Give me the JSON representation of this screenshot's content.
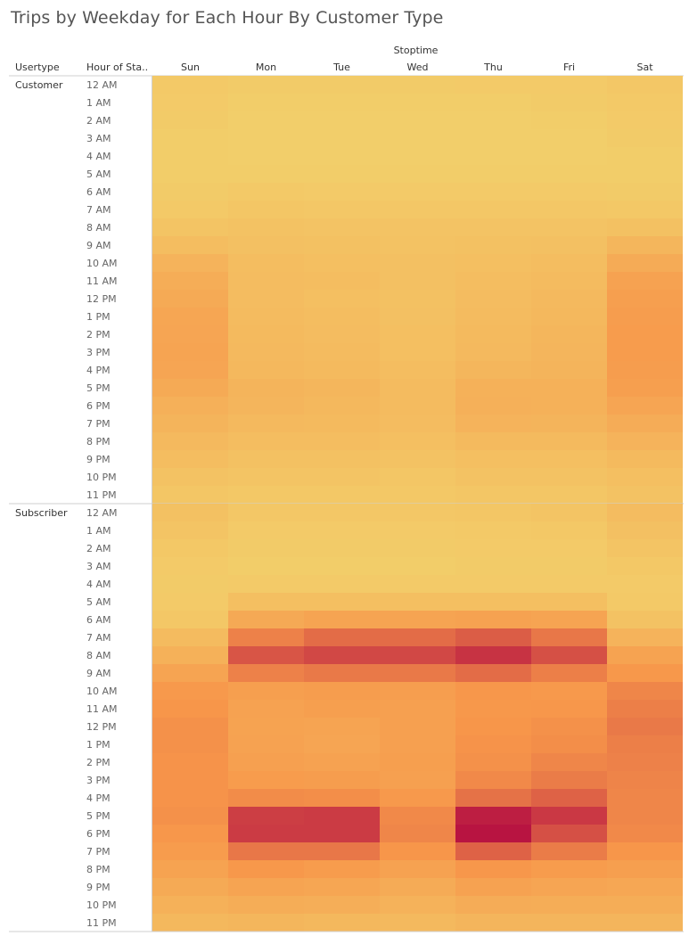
{
  "chart_data": {
    "type": "heatmap",
    "title": "Trips by Weekday for Each Hour By Customer Type",
    "column_header": "Stoptime",
    "row_headers": [
      "Usertype",
      "Hour of Sta.."
    ],
    "columns": [
      "Sun",
      "Mon",
      "Tue",
      "Wed",
      "Thu",
      "Fri",
      "Sat"
    ],
    "hours": [
      "12 AM",
      "1 AM",
      "2 AM",
      "3 AM",
      "4 AM",
      "5 AM",
      "6 AM",
      "7 AM",
      "8 AM",
      "9 AM",
      "10 AM",
      "11 AM",
      "12 PM",
      "1 PM",
      "2 PM",
      "3 PM",
      "4 PM",
      "5 PM",
      "6 PM",
      "7 PM",
      "8 PM",
      "9 PM",
      "10 PM",
      "11 PM"
    ],
    "color_scale": {
      "low": "#f2d06b",
      "mid": "#f7964a",
      "high": "#b81441",
      "min": 0,
      "max": 100
    },
    "groups": [
      {
        "name": "Customer",
        "values": [
          [
            6,
            4,
            4,
            4,
            5,
            5,
            8
          ],
          [
            5,
            3,
            3,
            3,
            3,
            4,
            6
          ],
          [
            4,
            2,
            2,
            2,
            2,
            3,
            5
          ],
          [
            3,
            2,
            2,
            2,
            2,
            2,
            4
          ],
          [
            3,
            2,
            2,
            2,
            2,
            2,
            3
          ],
          [
            3,
            3,
            3,
            3,
            3,
            3,
            3
          ],
          [
            4,
            6,
            5,
            5,
            5,
            5,
            4
          ],
          [
            6,
            9,
            8,
            8,
            8,
            8,
            7
          ],
          [
            10,
            12,
            11,
            11,
            11,
            11,
            13
          ],
          [
            16,
            14,
            13,
            12,
            13,
            14,
            22
          ],
          [
            25,
            16,
            15,
            14,
            15,
            16,
            32
          ],
          [
            30,
            17,
            16,
            14,
            16,
            18,
            40
          ],
          [
            33,
            17,
            15,
            13,
            17,
            20,
            42
          ],
          [
            36,
            18,
            16,
            14,
            18,
            21,
            44
          ],
          [
            37,
            19,
            17,
            15,
            19,
            22,
            45
          ],
          [
            38,
            20,
            18,
            15,
            20,
            23,
            45
          ],
          [
            37,
            21,
            19,
            16,
            22,
            24,
            44
          ],
          [
            33,
            24,
            22,
            18,
            27,
            27,
            42
          ],
          [
            28,
            23,
            21,
            18,
            28,
            27,
            37
          ],
          [
            24,
            20,
            19,
            17,
            25,
            24,
            31
          ],
          [
            20,
            16,
            16,
            15,
            19,
            19,
            25
          ],
          [
            16,
            13,
            13,
            12,
            15,
            15,
            19
          ],
          [
            12,
            10,
            10,
            9,
            12,
            12,
            15
          ],
          [
            9,
            7,
            7,
            7,
            9,
            9,
            12
          ]
        ]
      },
      {
        "name": "Subscriber",
        "values": [
          [
            13,
            8,
            8,
            8,
            9,
            10,
            17
          ],
          [
            10,
            5,
            5,
            5,
            6,
            7,
            14
          ],
          [
            7,
            4,
            4,
            4,
            5,
            5,
            10
          ],
          [
            5,
            3,
            3,
            3,
            4,
            4,
            7
          ],
          [
            4,
            5,
            5,
            5,
            5,
            5,
            5
          ],
          [
            5,
            15,
            15,
            15,
            15,
            15,
            6
          ],
          [
            8,
            34,
            38,
            38,
            40,
            38,
            12
          ],
          [
            18,
            58,
            66,
            66,
            72,
            62,
            25
          ],
          [
            27,
            75,
            80,
            80,
            88,
            77,
            39
          ],
          [
            38,
            58,
            61,
            61,
            66,
            59,
            48
          ],
          [
            47,
            42,
            44,
            43,
            49,
            47,
            56
          ],
          [
            50,
            40,
            42,
            41,
            48,
            49,
            59
          ],
          [
            52,
            39,
            38,
            41,
            50,
            52,
            61
          ],
          [
            52,
            40,
            37,
            41,
            51,
            53,
            59
          ],
          [
            51,
            41,
            40,
            42,
            52,
            56,
            58
          ],
          [
            51,
            45,
            44,
            41,
            55,
            60,
            57
          ],
          [
            51,
            54,
            53,
            47,
            64,
            70,
            56
          ],
          [
            52,
            84,
            85,
            55,
            96,
            86,
            56
          ],
          [
            49,
            85,
            85,
            56,
            100,
            77,
            55
          ],
          [
            45,
            62,
            62,
            50,
            70,
            60,
            50
          ],
          [
            39,
            48,
            45,
            40,
            49,
            45,
            42
          ],
          [
            33,
            38,
            36,
            32,
            40,
            37,
            35
          ],
          [
            27,
            30,
            29,
            26,
            31,
            30,
            30
          ],
          [
            21,
            22,
            21,
            20,
            23,
            23,
            23
          ]
        ]
      }
    ]
  }
}
